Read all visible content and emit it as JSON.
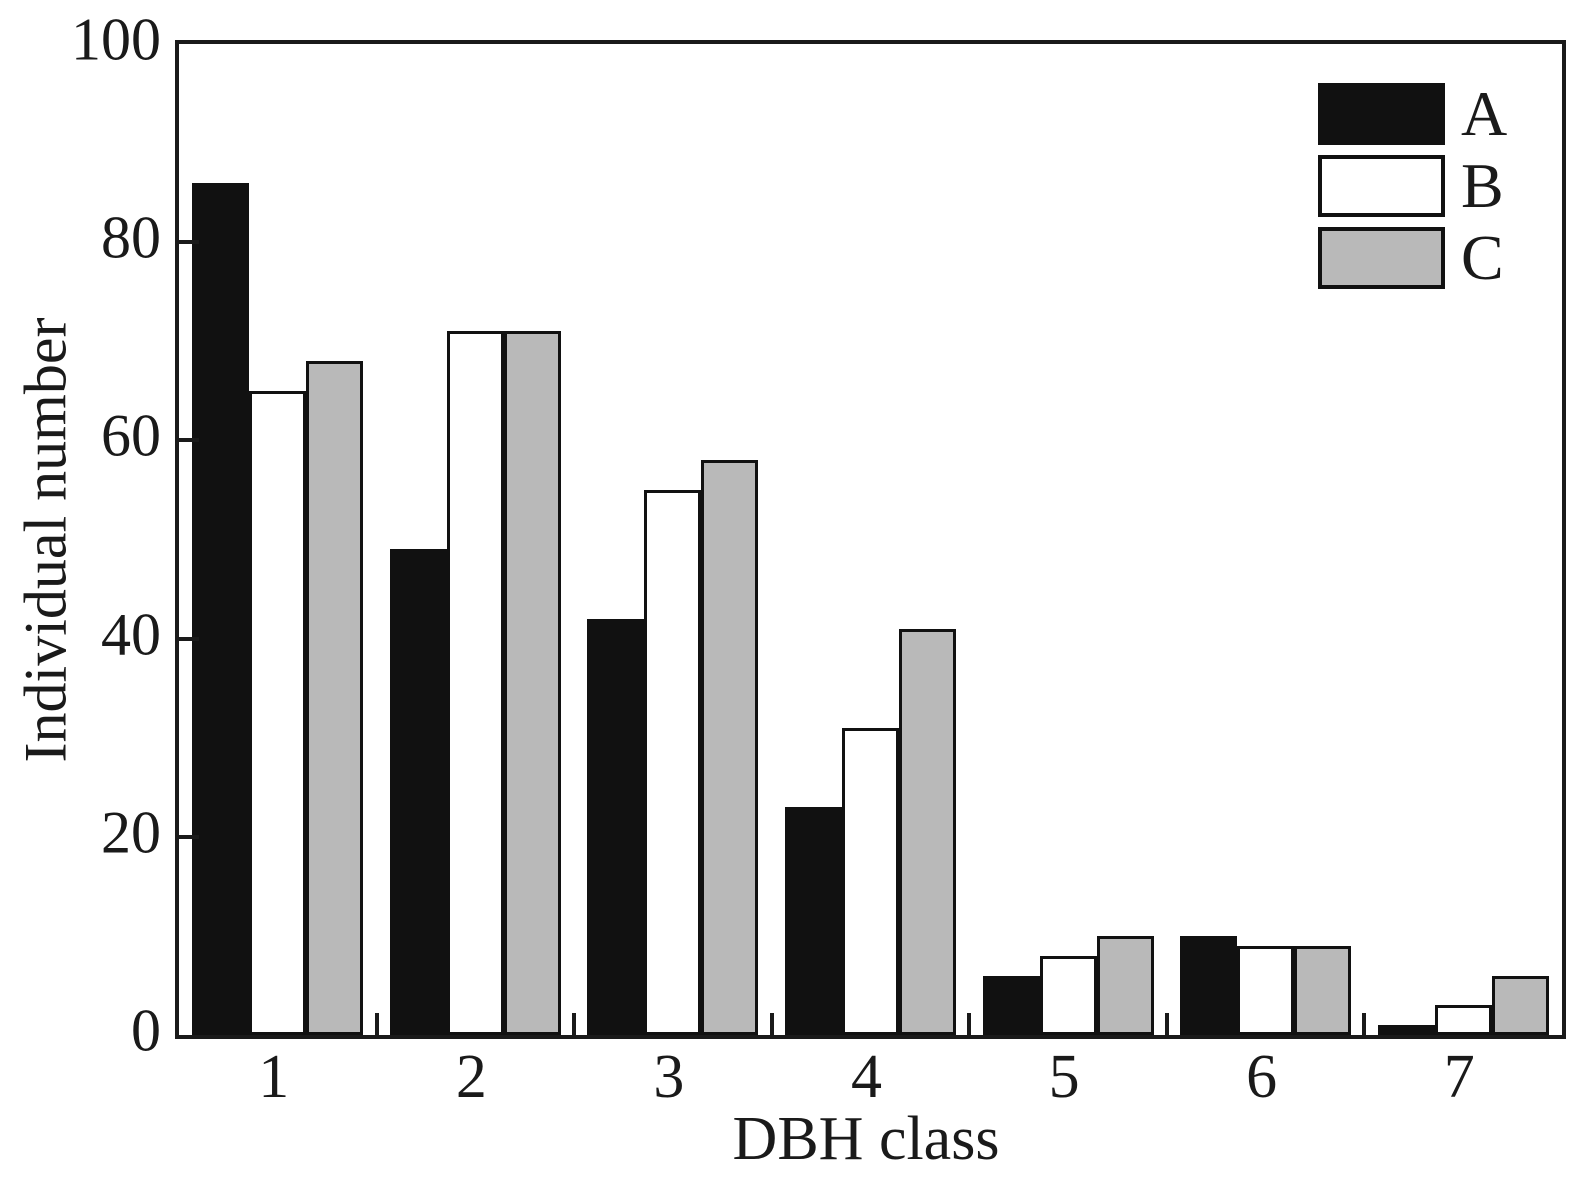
{
  "chart_data": {
    "type": "bar",
    "title": "",
    "xlabel": "DBH class",
    "ylabel": "Individual number",
    "categories": [
      "1",
      "2",
      "3",
      "4",
      "5",
      "6",
      "7"
    ],
    "series": [
      {
        "name": "A",
        "color": "#111111",
        "values": [
          86,
          49,
          42,
          23,
          6,
          10,
          1
        ]
      },
      {
        "name": "B",
        "color": "#ffffff",
        "values": [
          65,
          71,
          55,
          31,
          8,
          9,
          3
        ]
      },
      {
        "name": "C",
        "color": "#b9b9b9",
        "values": [
          68,
          71,
          58,
          41,
          10,
          9,
          6
        ]
      }
    ],
    "ylim": [
      0,
      100
    ],
    "yticks": [
      0,
      20,
      40,
      60,
      80,
      100
    ],
    "grid": false,
    "legend_position": "top-right",
    "frame": "full-box",
    "bar_border_color": "#111111",
    "axis_color": "#1a1a1a"
  }
}
